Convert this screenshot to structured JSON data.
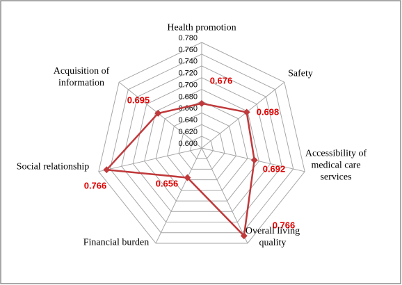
{
  "chart_data": {
    "type": "radar",
    "categories": [
      "Health promotion",
      "Safety",
      "Accessibility of medical care services",
      "Overall living quality",
      "Financial burden",
      "Social relationship",
      "Acquisition of information"
    ],
    "series": [
      {
        "color": "#c0393b",
        "values": [
          0.676,
          0.698,
          0.692,
          0.766,
          0.656,
          0.766,
          0.695
        ]
      }
    ],
    "ylim": [
      0.6,
      0.78
    ],
    "yticks": [
      {
        "value": 0.6,
        "label": "0.600"
      },
      {
        "value": 0.62,
        "label": "0.620"
      },
      {
        "value": 0.64,
        "label": "0.640"
      },
      {
        "value": 0.66,
        "label": "0.660"
      },
      {
        "value": 0.68,
        "label": "0.680"
      },
      {
        "value": 0.7,
        "label": "0.700"
      },
      {
        "value": 0.72,
        "label": "0.720"
      },
      {
        "value": 0.74,
        "label": "0.740"
      },
      {
        "value": 0.76,
        "label": "0.760"
      },
      {
        "value": 0.78,
        "label": "0.780"
      }
    ],
    "value_label_color": "#e00000",
    "grid": true
  }
}
